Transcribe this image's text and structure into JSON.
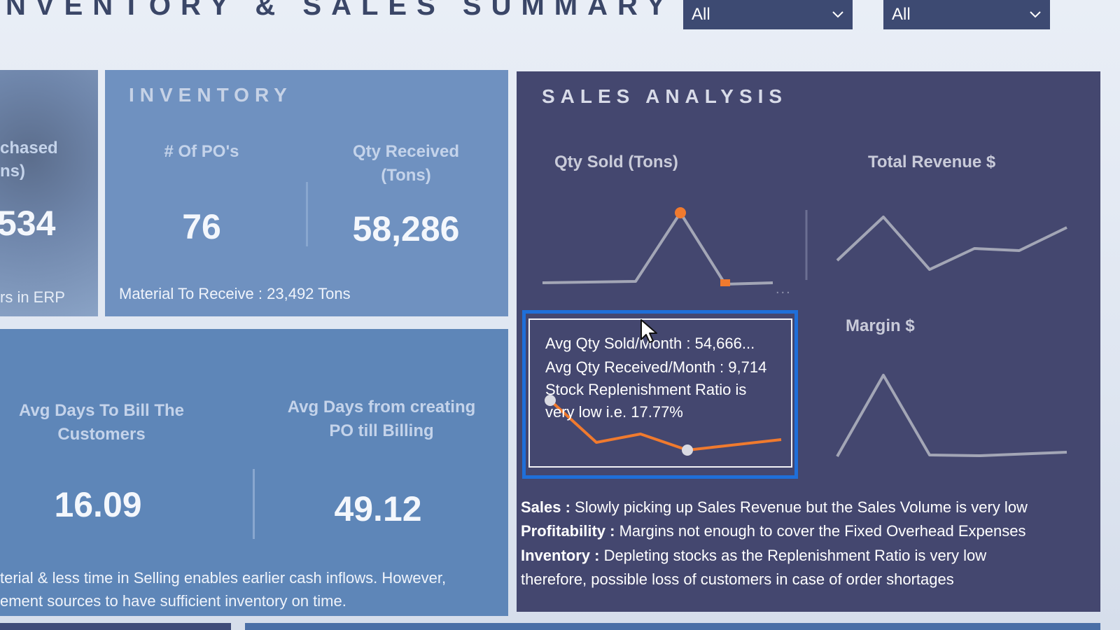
{
  "header": {
    "title": "NVENTORY & SALES SUMMARY",
    "filter1": "All",
    "filter2": "All"
  },
  "purchased": {
    "label": "chased\nns)",
    "label_line1": "chased",
    "label_line2": "ns)",
    "value": "534",
    "footnote": "rs  in ERP"
  },
  "inventory": {
    "heading": "INVENTORY",
    "pos_label": "# Of PO's",
    "pos_value": "76",
    "qty_label_line1": "Qty Received",
    "qty_label_line2": "(Tons)",
    "qty_value": "58,286",
    "material_note": "Material To Receive :  23,492 Tons"
  },
  "billing": {
    "bill_label_line1": "Avg Days To Bill The",
    "bill_label_line2": "Customers",
    "bill_value": "16.09",
    "po_label_line1": "Avg Days from creating",
    "po_label_line2": "PO till Billing",
    "po_value": "49.12",
    "note_line1": "terial & less time in Selling enables earlier cash inflows. However,",
    "note_line2": "ement sources to have sufficient inventory on time."
  },
  "sales": {
    "heading": "SALES ANALYSIS",
    "qty_title": "Qty Sold (Tons)",
    "rev_title": "Total Revenue $",
    "margin_title": "Margin $",
    "more_options": "...",
    "tooltip": {
      "line1": "Avg Qty Sold/Month : 54,666...",
      "line2": "Avg Qty Received/Month : 9,714",
      "line3": "Stock Replenishment Ratio is",
      "line4": "very low i.e. 17.77%"
    },
    "insights": {
      "sales_key": "Sales :",
      "sales_text": " Slowly picking up Sales Revenue but the Sales Volume is very low",
      "profit_key": "Profitability :",
      "profit_text": " Margins not enough to cover the Fixed Overhead Expenses",
      "inv_key": "Inventory :",
      "inv_text": "  Depleting stocks as the Replenishment Ratio is very low",
      "inv_text2": "therefore, possible loss of customers in case of order shortages"
    }
  },
  "colors": {
    "accent_orange": "#f07a2e",
    "line_gray": "#a3a6b6",
    "sales_bg": "#44476f",
    "inventory_bg": "#6f91c0",
    "highlight_blue": "#1f6fd9"
  }
}
